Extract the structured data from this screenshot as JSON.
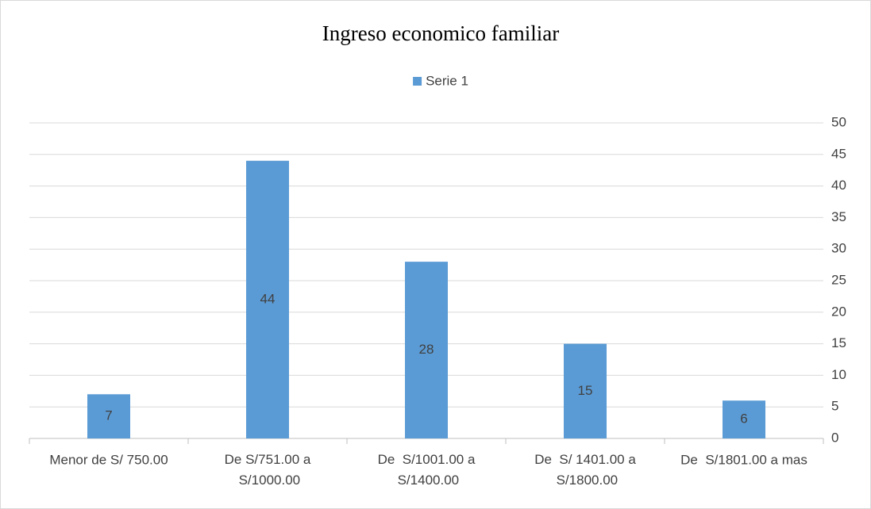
{
  "chart_data": {
    "type": "bar",
    "title": "Ingreso economico familiar",
    "categories": [
      "Menor de S/ 750.00",
      "De S/751.00 a S/1000.00",
      "De  S/1001.00 a S/1400.00",
      "De  S/ 1401.00 a S/1800.00",
      "De  S/1801.00 a mas"
    ],
    "series": [
      {
        "name": "Serie 1",
        "color": "#5b9bd5",
        "values": [
          7,
          44,
          28,
          15,
          6
        ]
      }
    ],
    "ylim": [
      0,
      50
    ],
    "yticks": [
      0,
      5,
      10,
      15,
      20,
      25,
      30,
      35,
      40,
      45,
      50
    ],
    "y_axis_side": "right",
    "grid": true,
    "legend": "top",
    "data_labels": true
  }
}
